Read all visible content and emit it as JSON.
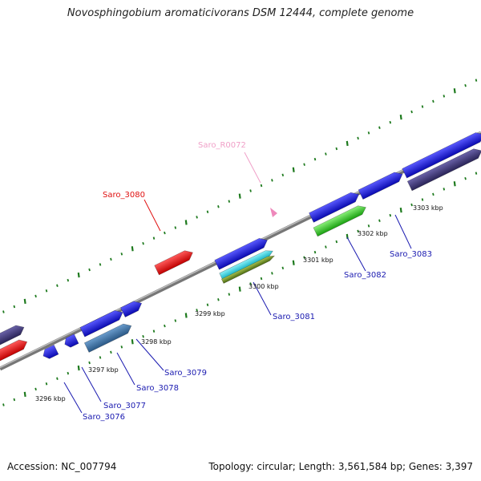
{
  "title": "Novosphingobium aromaticivorans DSM 12444, complete genome",
  "footer": {
    "accession": "Accession: NC_007794",
    "info": "Topology: circular; Length: 3,561,584 bp; Genes: 3,397"
  },
  "colors": {
    "backbone": "#8a8a8a",
    "tick": "#1e7a1e",
    "blue": "#1c1cf0",
    "red": "#ee1111",
    "navy": "#3b3475",
    "steel": "#3a6fa6",
    "cyan": "#2cd3e0",
    "olive": "#6e8a22",
    "green": "#3ccb2c",
    "pink": "#ee88bb"
  },
  "ticks": [
    {
      "label": "3296 kbp"
    },
    {
      "label": "3297 kbp"
    },
    {
      "label": "3298 kbp"
    },
    {
      "label": "3299 kbp"
    },
    {
      "label": "3300 kbp"
    },
    {
      "label": "3301 kbp"
    },
    {
      "label": "3302 kbp"
    },
    {
      "label": "3303 kbp"
    }
  ],
  "gene_labels": [
    {
      "text": "Saro_R0072",
      "color": "#f0a0c8"
    },
    {
      "text": "Saro_3080",
      "color": "#e01010"
    },
    {
      "text": "Saro_3081",
      "color": "#1a1ab0"
    },
    {
      "text": "Saro_3082",
      "color": "#1a1ab0"
    },
    {
      "text": "Saro_3083",
      "color": "#1a1ab0"
    },
    {
      "text": "Saro_3079",
      "color": "#1a1ab0"
    },
    {
      "text": "Saro_3078",
      "color": "#1a1ab0"
    },
    {
      "text": "Saro_3077",
      "color": "#1a1ab0"
    },
    {
      "text": "Saro_3076",
      "color": "#1a1ab0"
    }
  ]
}
